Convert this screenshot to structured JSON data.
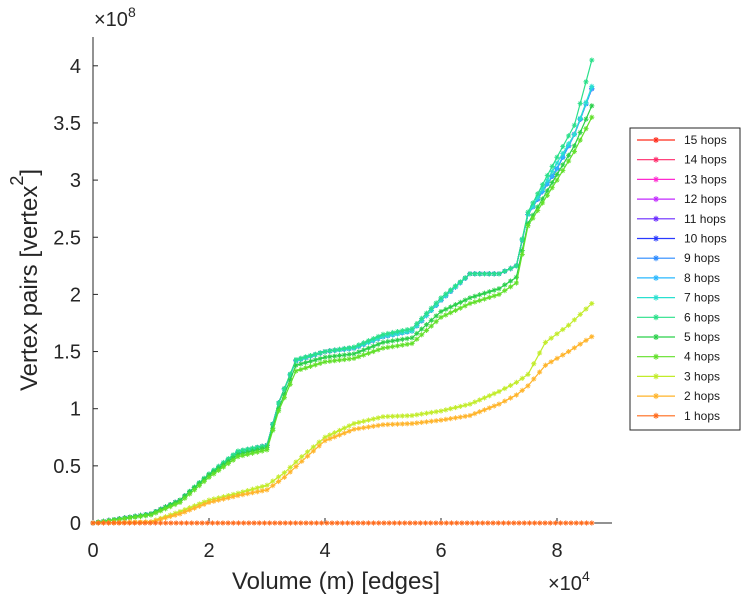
{
  "chart_data": {
    "type": "line",
    "title": "",
    "xlabel": "Volume (m) [edges]",
    "ylabel": "Vertex pairs [vertex",
    "ylabel_superscript": "2",
    "ylabel_close": "]",
    "x_exponent_base": "×10",
    "x_exponent_power": "4",
    "y_exponent_base": "×10",
    "y_exponent_power": "8",
    "xlim": [
      0,
      9
    ],
    "ylim": [
      0,
      4.3
    ],
    "xticks": [
      0,
      2,
      4,
      6,
      8
    ],
    "xtick_labels": [
      "0",
      "2",
      "4",
      "6",
      "8"
    ],
    "yticks": [
      0,
      0.5,
      1,
      1.5,
      2,
      2.5,
      3,
      3.5,
      4
    ],
    "ytick_labels": [
      "0",
      "0.5",
      "1",
      "1.5",
      "2",
      "2.5",
      "3",
      "3.5",
      "4"
    ],
    "grid": false,
    "legend_position": "right",
    "x_units_note": "x in units of 1e4 edges, y in units of 1e8 vertex^2",
    "series": [
      {
        "name": "15 hops",
        "color": "#ff2a1a",
        "points": [
          [
            0,
            0
          ],
          [
            1,
            0.08
          ],
          [
            1.5,
            0.2
          ],
          [
            2,
            0.42
          ],
          [
            2.5,
            0.62
          ],
          [
            3,
            0.68
          ],
          [
            3.2,
            1.05
          ],
          [
            3.5,
            1.42
          ],
          [
            4,
            1.5
          ],
          [
            4.5,
            1.53
          ],
          [
            5,
            1.63
          ],
          [
            5.5,
            1.68
          ],
          [
            6,
            1.95
          ],
          [
            6.5,
            2.18
          ],
          [
            7,
            2.18
          ],
          [
            7.3,
            2.25
          ],
          [
            7.5,
            2.7
          ],
          [
            8,
            3.1
          ],
          [
            8.3,
            3.4
          ],
          [
            8.6,
            3.8
          ]
        ]
      },
      {
        "name": "14 hops",
        "color": "#ff2a6a",
        "points": [
          [
            0,
            0
          ],
          [
            1,
            0.08
          ],
          [
            1.5,
            0.2
          ],
          [
            2,
            0.42
          ],
          [
            2.5,
            0.62
          ],
          [
            3,
            0.68
          ],
          [
            3.2,
            1.05
          ],
          [
            3.5,
            1.42
          ],
          [
            4,
            1.5
          ],
          [
            4.5,
            1.53
          ],
          [
            5,
            1.63
          ],
          [
            5.5,
            1.68
          ],
          [
            6,
            1.95
          ],
          [
            6.5,
            2.18
          ],
          [
            7,
            2.18
          ],
          [
            7.3,
            2.25
          ],
          [
            7.5,
            2.7
          ],
          [
            8,
            3.1
          ],
          [
            8.3,
            3.4
          ],
          [
            8.6,
            3.8
          ]
        ]
      },
      {
        "name": "13 hops",
        "color": "#ff2ad0",
        "points": [
          [
            0,
            0
          ],
          [
            1,
            0.08
          ],
          [
            1.5,
            0.2
          ],
          [
            2,
            0.42
          ],
          [
            2.5,
            0.62
          ],
          [
            3,
            0.68
          ],
          [
            3.2,
            1.05
          ],
          [
            3.5,
            1.42
          ],
          [
            4,
            1.5
          ],
          [
            4.5,
            1.53
          ],
          [
            5,
            1.63
          ],
          [
            5.5,
            1.68
          ],
          [
            6,
            1.95
          ],
          [
            6.5,
            2.18
          ],
          [
            7,
            2.18
          ],
          [
            7.3,
            2.25
          ],
          [
            7.5,
            2.7
          ],
          [
            8,
            3.1
          ],
          [
            8.3,
            3.4
          ],
          [
            8.6,
            3.8
          ]
        ]
      },
      {
        "name": "12 hops",
        "color": "#c22aff",
        "points": [
          [
            0,
            0
          ],
          [
            1,
            0.08
          ],
          [
            1.5,
            0.2
          ],
          [
            2,
            0.42
          ],
          [
            2.5,
            0.62
          ],
          [
            3,
            0.68
          ],
          [
            3.2,
            1.05
          ],
          [
            3.5,
            1.42
          ],
          [
            4,
            1.5
          ],
          [
            4.5,
            1.53
          ],
          [
            5,
            1.63
          ],
          [
            5.5,
            1.68
          ],
          [
            6,
            1.95
          ],
          [
            6.5,
            2.18
          ],
          [
            7,
            2.18
          ],
          [
            7.3,
            2.25
          ],
          [
            7.5,
            2.7
          ],
          [
            8,
            3.1
          ],
          [
            8.3,
            3.4
          ],
          [
            8.6,
            3.8
          ]
        ]
      },
      {
        "name": "11 hops",
        "color": "#6a2aff",
        "points": [
          [
            0,
            0
          ],
          [
            1,
            0.08
          ],
          [
            1.5,
            0.2
          ],
          [
            2,
            0.42
          ],
          [
            2.5,
            0.62
          ],
          [
            3,
            0.68
          ],
          [
            3.2,
            1.05
          ],
          [
            3.5,
            1.42
          ],
          [
            4,
            1.5
          ],
          [
            4.5,
            1.53
          ],
          [
            5,
            1.63
          ],
          [
            5.5,
            1.68
          ],
          [
            6,
            1.95
          ],
          [
            6.5,
            2.18
          ],
          [
            7,
            2.18
          ],
          [
            7.3,
            2.25
          ],
          [
            7.5,
            2.7
          ],
          [
            8,
            3.1
          ],
          [
            8.3,
            3.4
          ],
          [
            8.6,
            3.8
          ]
        ]
      },
      {
        "name": "10 hops",
        "color": "#2a3aff",
        "points": [
          [
            0,
            0
          ],
          [
            1,
            0.08
          ],
          [
            1.5,
            0.2
          ],
          [
            2,
            0.42
          ],
          [
            2.5,
            0.62
          ],
          [
            3,
            0.68
          ],
          [
            3.2,
            1.05
          ],
          [
            3.5,
            1.42
          ],
          [
            4,
            1.5
          ],
          [
            4.5,
            1.53
          ],
          [
            5,
            1.63
          ],
          [
            5.5,
            1.68
          ],
          [
            6,
            1.95
          ],
          [
            6.5,
            2.18
          ],
          [
            7,
            2.18
          ],
          [
            7.3,
            2.25
          ],
          [
            7.5,
            2.7
          ],
          [
            8,
            3.1
          ],
          [
            8.3,
            3.4
          ],
          [
            8.6,
            3.8
          ]
        ]
      },
      {
        "name": "9 hops",
        "color": "#2a8aff",
        "points": [
          [
            0,
            0
          ],
          [
            1,
            0.08
          ],
          [
            1.5,
            0.2
          ],
          [
            2,
            0.42
          ],
          [
            2.5,
            0.62
          ],
          [
            3,
            0.68
          ],
          [
            3.2,
            1.05
          ],
          [
            3.5,
            1.42
          ],
          [
            4,
            1.5
          ],
          [
            4.5,
            1.53
          ],
          [
            5,
            1.63
          ],
          [
            5.5,
            1.68
          ],
          [
            6,
            1.95
          ],
          [
            6.5,
            2.18
          ],
          [
            7,
            2.18
          ],
          [
            7.3,
            2.25
          ],
          [
            7.5,
            2.7
          ],
          [
            8,
            3.1
          ],
          [
            8.3,
            3.4
          ],
          [
            8.6,
            3.8
          ]
        ]
      },
      {
        "name": "8 hops",
        "color": "#2ab8ff",
        "points": [
          [
            0,
            0
          ],
          [
            1,
            0.08
          ],
          [
            1.5,
            0.2
          ],
          [
            2,
            0.42
          ],
          [
            2.5,
            0.62
          ],
          [
            3,
            0.68
          ],
          [
            3.2,
            1.05
          ],
          [
            3.5,
            1.42
          ],
          [
            4,
            1.5
          ],
          [
            4.5,
            1.53
          ],
          [
            5,
            1.63
          ],
          [
            5.5,
            1.68
          ],
          [
            6,
            1.95
          ],
          [
            6.5,
            2.18
          ],
          [
            7,
            2.18
          ],
          [
            7.3,
            2.25
          ],
          [
            7.5,
            2.7
          ],
          [
            8,
            3.1
          ],
          [
            8.3,
            3.4
          ],
          [
            8.6,
            3.8
          ]
        ]
      },
      {
        "name": "7 hops",
        "color": "#2ae0d0",
        "points": [
          [
            0,
            0
          ],
          [
            1,
            0.08
          ],
          [
            1.5,
            0.2
          ],
          [
            2,
            0.42
          ],
          [
            2.5,
            0.62
          ],
          [
            3,
            0.68
          ],
          [
            3.2,
            1.05
          ],
          [
            3.5,
            1.42
          ],
          [
            4,
            1.5
          ],
          [
            4.5,
            1.53
          ],
          [
            5,
            1.63
          ],
          [
            5.5,
            1.68
          ],
          [
            6,
            1.95
          ],
          [
            6.5,
            2.18
          ],
          [
            7,
            2.18
          ],
          [
            7.3,
            2.25
          ],
          [
            7.5,
            2.7
          ],
          [
            8,
            3.15
          ],
          [
            8.3,
            3.4
          ],
          [
            8.6,
            3.82
          ]
        ]
      },
      {
        "name": "6 hops",
        "color": "#2ae08a",
        "points": [
          [
            0,
            0
          ],
          [
            1,
            0.08
          ],
          [
            1.5,
            0.2
          ],
          [
            2,
            0.43
          ],
          [
            2.5,
            0.63
          ],
          [
            3,
            0.68
          ],
          [
            3.2,
            1.05
          ],
          [
            3.5,
            1.43
          ],
          [
            4,
            1.5
          ],
          [
            4.5,
            1.54
          ],
          [
            5,
            1.65
          ],
          [
            5.5,
            1.7
          ],
          [
            6,
            1.97
          ],
          [
            6.5,
            2.18
          ],
          [
            7,
            2.18
          ],
          [
            7.3,
            2.25
          ],
          [
            7.5,
            2.72
          ],
          [
            8,
            3.2
          ],
          [
            8.3,
            3.48
          ],
          [
            8.6,
            4.05
          ]
        ]
      },
      {
        "name": "5 hops",
        "color": "#2ad04a",
        "points": [
          [
            0,
            0
          ],
          [
            1,
            0.08
          ],
          [
            1.5,
            0.2
          ],
          [
            2,
            0.42
          ],
          [
            2.5,
            0.6
          ],
          [
            3,
            0.66
          ],
          [
            3.2,
            1.0
          ],
          [
            3.5,
            1.38
          ],
          [
            4,
            1.45
          ],
          [
            4.5,
            1.48
          ],
          [
            5,
            1.58
          ],
          [
            5.5,
            1.62
          ],
          [
            6,
            1.85
          ],
          [
            6.5,
            1.97
          ],
          [
            7,
            2.05
          ],
          [
            7.3,
            2.15
          ],
          [
            7.5,
            2.62
          ],
          [
            8,
            3.05
          ],
          [
            8.3,
            3.3
          ],
          [
            8.6,
            3.65
          ]
        ]
      },
      {
        "name": "4 hops",
        "color": "#62e02a",
        "points": [
          [
            0,
            0
          ],
          [
            1,
            0.07
          ],
          [
            1.5,
            0.18
          ],
          [
            2,
            0.4
          ],
          [
            2.5,
            0.58
          ],
          [
            3,
            0.64
          ],
          [
            3.2,
            0.98
          ],
          [
            3.5,
            1.33
          ],
          [
            4,
            1.41
          ],
          [
            4.5,
            1.44
          ],
          [
            5,
            1.53
          ],
          [
            5.5,
            1.57
          ],
          [
            6,
            1.8
          ],
          [
            6.5,
            1.92
          ],
          [
            7,
            2.0
          ],
          [
            7.3,
            2.1
          ],
          [
            7.5,
            2.6
          ],
          [
            8,
            3.0
          ],
          [
            8.3,
            3.25
          ],
          [
            8.6,
            3.55
          ]
        ]
      },
      {
        "name": "3 hops",
        "color": "#c2ec2a",
        "points": [
          [
            0,
            0
          ],
          [
            1,
            0.01
          ],
          [
            1.5,
            0.1
          ],
          [
            2,
            0.2
          ],
          [
            2.5,
            0.26
          ],
          [
            3,
            0.33
          ],
          [
            3.3,
            0.44
          ],
          [
            3.6,
            0.58
          ],
          [
            4,
            0.75
          ],
          [
            4.5,
            0.87
          ],
          [
            5,
            0.93
          ],
          [
            5.5,
            0.94
          ],
          [
            6,
            0.98
          ],
          [
            6.5,
            1.04
          ],
          [
            7,
            1.15
          ],
          [
            7.3,
            1.23
          ],
          [
            7.5,
            1.3
          ],
          [
            7.8,
            1.58
          ],
          [
            8.2,
            1.73
          ],
          [
            8.6,
            1.92
          ]
        ]
      },
      {
        "name": "2 hops",
        "color": "#ffb42a",
        "points": [
          [
            0,
            0
          ],
          [
            1,
            0.01
          ],
          [
            1.5,
            0.08
          ],
          [
            2,
            0.18
          ],
          [
            2.5,
            0.24
          ],
          [
            3,
            0.29
          ],
          [
            3.3,
            0.4
          ],
          [
            3.6,
            0.54
          ],
          [
            4,
            0.72
          ],
          [
            4.5,
            0.82
          ],
          [
            5,
            0.86
          ],
          [
            5.5,
            0.87
          ],
          [
            6,
            0.9
          ],
          [
            6.5,
            0.94
          ],
          [
            7,
            1.04
          ],
          [
            7.3,
            1.12
          ],
          [
            7.5,
            1.2
          ],
          [
            7.8,
            1.38
          ],
          [
            8.2,
            1.5
          ],
          [
            8.6,
            1.63
          ]
        ]
      },
      {
        "name": "1 hops",
        "color": "#ff6a1a",
        "points": [
          [
            0,
            0
          ],
          [
            8.6,
            0.0
          ]
        ]
      }
    ]
  }
}
